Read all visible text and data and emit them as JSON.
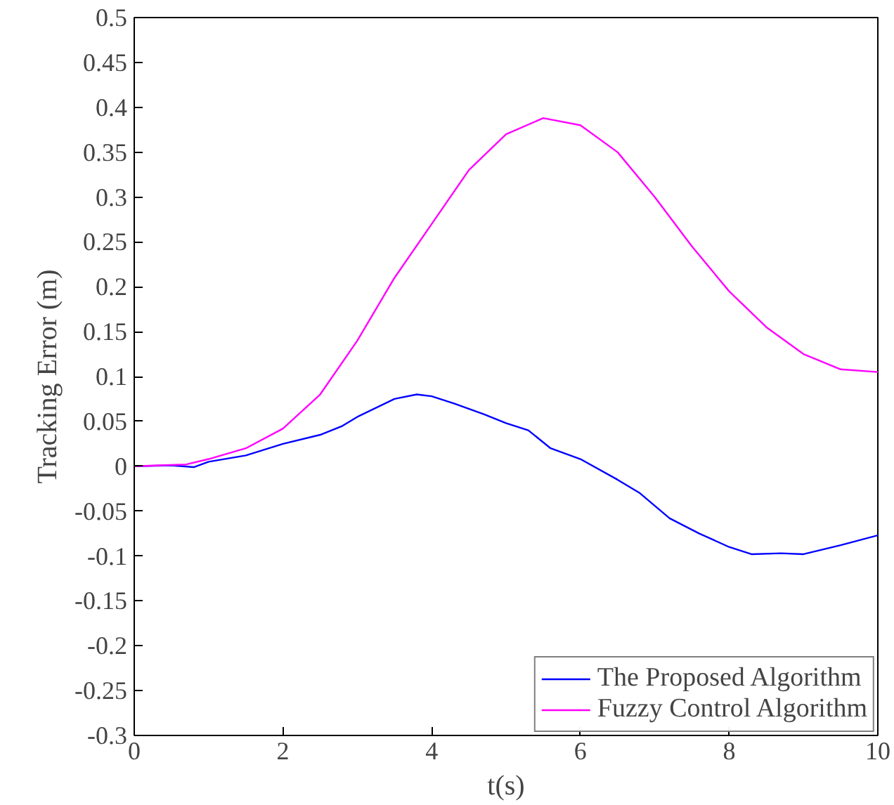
{
  "chart_data": {
    "type": "line",
    "xlabel": "t(s)",
    "ylabel": "Tracking Error (m)",
    "xlim": [
      0,
      10
    ],
    "xticks": [
      0,
      2,
      4,
      6,
      8,
      10
    ],
    "ylim": [
      -0.3,
      0.5
    ],
    "yticks": [
      -0.3,
      -0.25,
      -0.2,
      -0.15,
      -0.1,
      -0.05,
      0,
      0.05,
      0.1,
      0.15,
      0.2,
      0.25,
      0.3,
      0.35,
      0.4,
      0.45,
      0.5
    ],
    "grid": false,
    "legend": "bottom right",
    "marker": "none",
    "line_style": "solid",
    "series": [
      {
        "name": "The Proposed Algorithm",
        "color": "#0000ff",
        "x": [
          0,
          0.5,
          0.8,
          1,
          1.5,
          2,
          2.5,
          2.8,
          3,
          3.5,
          3.8,
          4,
          4.3,
          4.7,
          5,
          5.3,
          5.6,
          6,
          6.5,
          6.8,
          7.2,
          7.6,
          8,
          8.3,
          8.7,
          9,
          9.5,
          10
        ],
        "values": [
          0,
          0.001,
          -0.001,
          0.005,
          0.012,
          0.025,
          0.035,
          0.045,
          0.055,
          0.075,
          0.08,
          0.078,
          0.07,
          0.058,
          0.048,
          0.04,
          0.02,
          0.008,
          -0.015,
          -0.03,
          -0.058,
          -0.075,
          -0.09,
          -0.098,
          -0.097,
          -0.098,
          -0.088,
          -0.077
        ]
      },
      {
        "name": "Fuzzy Control Algorithm",
        "color": "#ff00ff",
        "x": [
          0,
          0.7,
          1,
          1.5,
          2,
          2.5,
          3,
          3.5,
          4,
          4.5,
          5,
          5.5,
          6,
          6.5,
          7,
          7.5,
          8,
          8.5,
          9,
          9.5,
          10
        ],
        "values": [
          0,
          0.002,
          0.008,
          0.02,
          0.042,
          0.08,
          0.14,
          0.21,
          0.27,
          0.33,
          0.37,
          0.388,
          0.38,
          0.35,
          0.3,
          0.245,
          0.195,
          0.155,
          0.125,
          0.108,
          0.105
        ]
      }
    ]
  }
}
